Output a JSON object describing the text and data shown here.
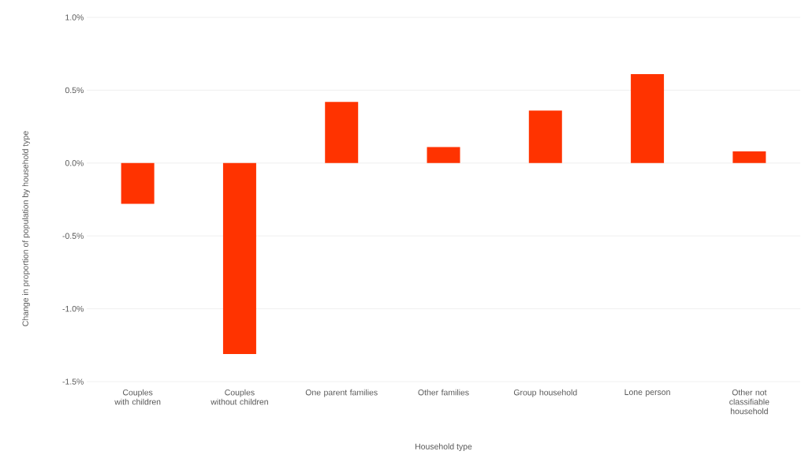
{
  "chart_data": {
    "type": "bar",
    "xlabel": "Household type",
    "ylabel": "Change in proportion of population by household type",
    "categories": [
      "Couples with children",
      "Couples without children",
      "One parent families",
      "Other families",
      "Group household",
      "Lone person",
      "Other not classifiable household"
    ],
    "values": [
      -0.28,
      -1.31,
      0.42,
      0.11,
      0.36,
      0.61,
      0.08
    ],
    "color": "#ff3300",
    "ylim": [
      -1.5,
      1.0
    ],
    "yticks": [
      {
        "value": -1.5,
        "label": "-1.5%"
      },
      {
        "value": -1.0,
        "label": "-1.0%"
      },
      {
        "value": -0.5,
        "label": "-0.5%"
      },
      {
        "value": 0.0,
        "label": "0.0%"
      },
      {
        "value": 0.5,
        "label": "0.5%"
      },
      {
        "value": 1.0,
        "label": "1.0%"
      }
    ],
    "grid": "y"
  }
}
